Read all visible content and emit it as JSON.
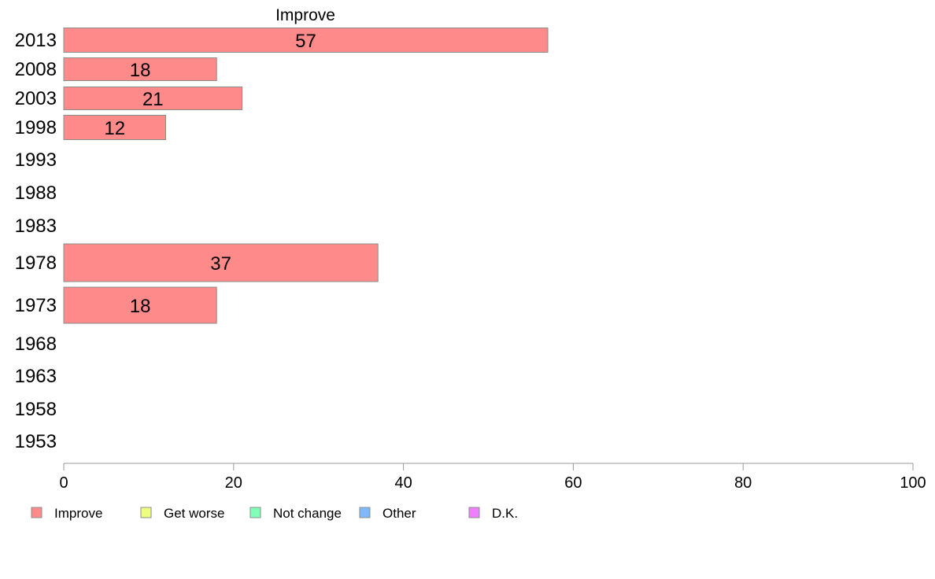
{
  "chart_data": {
    "type": "bar",
    "orientation": "horizontal",
    "title": "Improve",
    "xlabel": "",
    "ylabel": "",
    "xlim": [
      0,
      100
    ],
    "xticks": [
      0,
      20,
      40,
      60,
      80,
      100
    ],
    "grid": false,
    "legend_position": "bottom",
    "categories": [
      "2013",
      "2008",
      "2003",
      "1998",
      "1993",
      "1988",
      "1983",
      "1978",
      "1973",
      "1968",
      "1963",
      "1958",
      "1953"
    ],
    "series": [
      {
        "name": "Improve",
        "color": "#ff8a8a",
        "values": [
          57,
          18,
          21,
          12,
          null,
          null,
          null,
          37,
          18,
          null,
          null,
          null,
          null
        ],
        "value_labels": [
          "57",
          "18",
          "21",
          "12",
          "",
          "",
          "",
          "37",
          "18",
          "",
          "",
          "",
          ""
        ]
      }
    ],
    "legend": [
      {
        "label": "Improve",
        "color": "#ff8a8a"
      },
      {
        "label": "Get worse",
        "color": "#eeff80"
      },
      {
        "label": "Not change",
        "color": "#80ffb8"
      },
      {
        "label": "Other",
        "color": "#80b8ff"
      },
      {
        "label": "D.K.",
        "color": "#ee80ff"
      }
    ]
  }
}
